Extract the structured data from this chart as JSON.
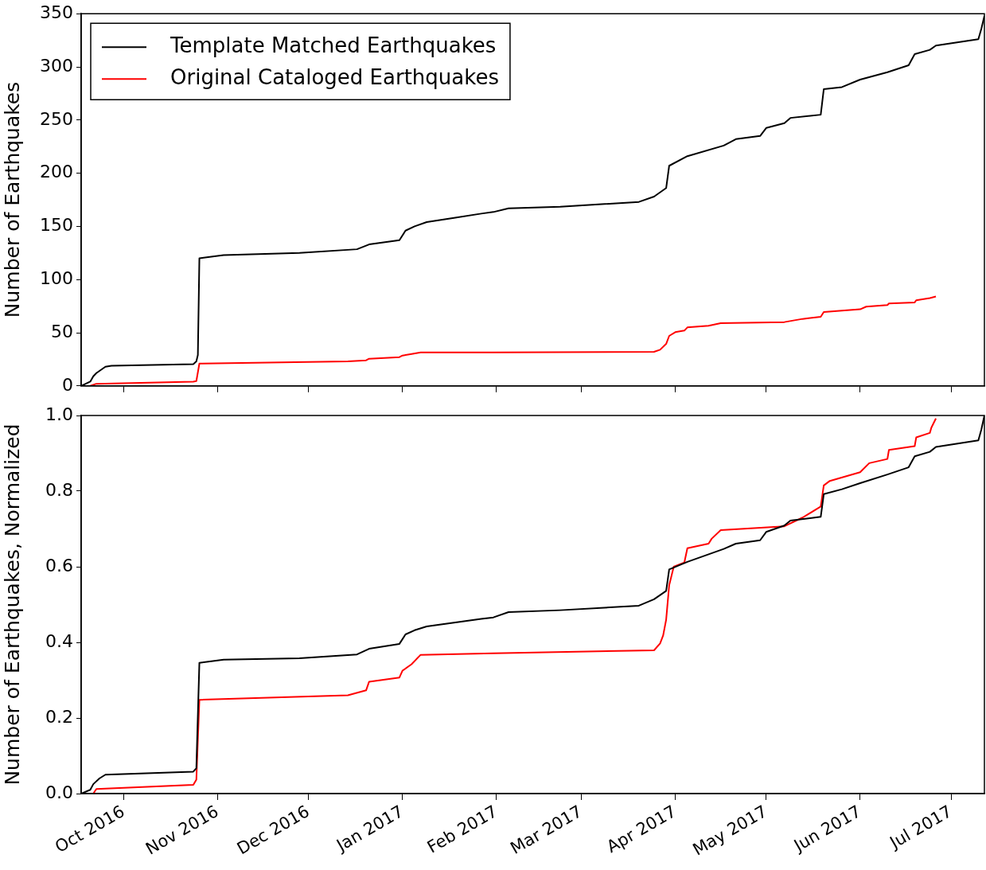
{
  "chart_data": [
    {
      "type": "line",
      "ylabel": "Number of Earthquakes",
      "xlim": [
        "2016-09-17",
        "2017-07-12"
      ],
      "xticks": [
        {
          "value": "2016-10-01",
          "label": null
        },
        {
          "value": "2016-11-01",
          "label": null
        },
        {
          "value": "2016-12-01",
          "label": null
        },
        {
          "value": "2017-01-01",
          "label": null
        },
        {
          "value": "2017-02-01",
          "label": null
        },
        {
          "value": "2017-03-01",
          "label": null
        },
        {
          "value": "2017-04-01",
          "label": null
        },
        {
          "value": "2017-05-01",
          "label": null
        },
        {
          "value": "2017-06-01",
          "label": null
        },
        {
          "value": "2017-07-01",
          "label": null
        }
      ],
      "ylim": [
        0,
        350
      ],
      "yticks": [
        0,
        50,
        100,
        150,
        200,
        250,
        300,
        350
      ],
      "tick_labels": "y",
      "grid": false,
      "legend": "top left",
      "series": [
        {
          "name": "Template Matched Earthquakes",
          "color": "#000000",
          "x": [
            "2016-09-17",
            "2016-09-20",
            "2016-09-21",
            "2016-09-22",
            "2016-09-25",
            "2016-09-27",
            "2016-10-24",
            "2016-10-25",
            "2016-10-25T12:00",
            "2016-10-26",
            "2016-11-03",
            "2016-11-28",
            "2016-12-17",
            "2016-12-21",
            "2016-12-31",
            "2017-01-02",
            "2017-01-05",
            "2017-01-09",
            "2017-01-18",
            "2017-01-27",
            "2017-01-31",
            "2017-02-05",
            "2017-02-22",
            "2017-03-20",
            "2017-03-25",
            "2017-03-29",
            "2017-03-30",
            "2017-04-05",
            "2017-04-17",
            "2017-04-21",
            "2017-04-29",
            "2017-05-01",
            "2017-05-07",
            "2017-05-09",
            "2017-05-19",
            "2017-05-20",
            "2017-05-26",
            "2017-06-01",
            "2017-06-10",
            "2017-06-17",
            "2017-06-19",
            "2017-06-24",
            "2017-06-26",
            "2017-07-10",
            "2017-07-11",
            "2017-07-12"
          ],
          "values": [
            0,
            4,
            9,
            12,
            18,
            19,
            20.5,
            23,
            29,
            120,
            123,
            125,
            128.5,
            133,
            137,
            146,
            150,
            154,
            158,
            162,
            163.5,
            167,
            168.5,
            173,
            178,
            186,
            207,
            216,
            226,
            232,
            235,
            242.5,
            247,
            252,
            255,
            279,
            281,
            288,
            295,
            301.5,
            312,
            316,
            320,
            326,
            336,
            348
          ]
        },
        {
          "name": "Original Cataloged Earthquakes",
          "color": "#ff0000",
          "x": [
            "2016-09-20",
            "2016-09-22",
            "2016-10-24",
            "2016-10-25",
            "2016-10-26",
            "2016-12-14",
            "2016-12-20",
            "2016-12-21",
            "2016-12-31",
            "2017-01-01",
            "2017-01-04",
            "2017-01-07",
            "2017-01-31",
            "2017-03-25",
            "2017-03-27",
            "2017-03-29",
            "2017-03-30",
            "2017-04-01",
            "2017-04-04",
            "2017-04-05",
            "2017-04-12",
            "2017-04-16",
            "2017-05-07",
            "2017-05-13",
            "2017-05-19",
            "2017-05-20",
            "2017-06-01",
            "2017-06-03",
            "2017-06-10",
            "2017-06-10T12:00",
            "2017-06-19",
            "2017-06-19T12:00",
            "2017-06-24",
            "2017-06-26"
          ],
          "values": [
            0,
            2,
            4,
            4.5,
            21,
            23,
            24,
            25.5,
            27,
            28.5,
            30,
            31.5,
            31.5,
            32,
            34,
            39.5,
            47,
            50.5,
            52,
            55,
            56.5,
            59,
            60,
            63,
            65,
            69.5,
            72,
            74.5,
            76,
            77.5,
            78.5,
            80.5,
            82.5,
            84
          ]
        }
      ]
    },
    {
      "type": "line",
      "ylabel": "Number of Earthquakes, Normalized",
      "xlim": [
        "2016-09-17",
        "2017-07-12"
      ],
      "xticks": [
        {
          "value": "2016-10-01",
          "label": "Oct 2016"
        },
        {
          "value": "2016-11-01",
          "label": "Nov 2016"
        },
        {
          "value": "2016-12-01",
          "label": "Dec 2016"
        },
        {
          "value": "2017-01-01",
          "label": "Jan 2017"
        },
        {
          "value": "2017-02-01",
          "label": "Feb 2017"
        },
        {
          "value": "2017-03-01",
          "label": "Mar 2017"
        },
        {
          "value": "2017-04-01",
          "label": "Apr 2017"
        },
        {
          "value": "2017-05-01",
          "label": "May 2017"
        },
        {
          "value": "2017-06-01",
          "label": "Jun 2017"
        },
        {
          "value": "2017-07-01",
          "label": "Jul 2017"
        }
      ],
      "ylim": [
        0,
        1
      ],
      "yticks": [
        {
          "value": 0,
          "label": "0.0"
        },
        {
          "value": 0.2,
          "label": "0.2"
        },
        {
          "value": 0.4,
          "label": "0.4"
        },
        {
          "value": 0.6,
          "label": "0.6"
        },
        {
          "value": 0.8,
          "label": "0.8"
        },
        {
          "value": 1,
          "label": "1.0"
        }
      ],
      "grid": false,
      "series": [
        {
          "color": "#000000",
          "x": [
            "2016-09-17",
            "2016-09-20",
            "2016-09-21",
            "2016-09-23",
            "2016-09-25",
            "2016-10-24",
            "2016-10-25",
            "2016-10-26",
            "2016-11-03",
            "2016-11-28",
            "2016-12-17",
            "2016-12-21",
            "2016-12-31",
            "2017-01-02",
            "2017-01-05",
            "2017-01-09",
            "2017-01-18",
            "2017-01-27",
            "2017-01-31",
            "2017-02-05",
            "2017-02-22",
            "2017-03-20",
            "2017-03-25",
            "2017-03-29",
            "2017-03-30",
            "2017-04-05",
            "2017-04-17",
            "2017-04-21",
            "2017-04-29",
            "2017-05-01",
            "2017-05-07",
            "2017-05-09",
            "2017-05-19",
            "2017-05-20",
            "2017-05-26",
            "2017-06-01",
            "2017-06-10",
            "2017-06-17",
            "2017-06-19",
            "2017-06-24",
            "2017-06-26",
            "2017-07-10",
            "2017-07-11",
            "2017-07-12"
          ],
          "values": [
            0,
            0.01,
            0.025,
            0.04,
            0.05,
            0.058,
            0.067,
            0.346,
            0.354,
            0.358,
            0.368,
            0.383,
            0.396,
            0.421,
            0.432,
            0.442,
            0.452,
            0.462,
            0.466,
            0.48,
            0.485,
            0.497,
            0.514,
            0.536,
            0.593,
            0.613,
            0.647,
            0.661,
            0.67,
            0.692,
            0.709,
            0.722,
            0.732,
            0.792,
            0.805,
            0.821,
            0.844,
            0.863,
            0.892,
            0.904,
            0.917,
            0.934,
            0.963,
            1
          ]
        },
        {
          "color": "#ff0000",
          "x": [
            "2016-09-21",
            "2016-09-22",
            "2016-10-24",
            "2016-10-25",
            "2016-10-26",
            "2016-12-14",
            "2016-12-20",
            "2016-12-21",
            "2016-12-31",
            "2017-01-01",
            "2017-01-04",
            "2017-01-07",
            "2017-01-31",
            "2017-03-25",
            "2017-03-27",
            "2017-03-28",
            "2017-03-29",
            "2017-03-30",
            "2017-03-31T12:00",
            "2017-04-04",
            "2017-04-05",
            "2017-04-12",
            "2017-04-13",
            "2017-04-16",
            "2017-05-07",
            "2017-05-13",
            "2017-05-19",
            "2017-05-20",
            "2017-05-22",
            "2017-06-01",
            "2017-06-04",
            "2017-06-10",
            "2017-06-10T12:00",
            "2017-06-19",
            "2017-06-19T12:00",
            "2017-06-24",
            "2017-06-24T12:00",
            "2017-06-26"
          ],
          "values": [
            0,
            0.012,
            0.023,
            0.037,
            0.248,
            0.26,
            0.273,
            0.296,
            0.307,
            0.325,
            0.342,
            0.367,
            0.371,
            0.379,
            0.397,
            0.418,
            0.46,
            0.551,
            0.6,
            0.611,
            0.649,
            0.661,
            0.674,
            0.697,
            0.707,
            0.73,
            0.759,
            0.815,
            0.827,
            0.85,
            0.874,
            0.885,
            0.909,
            0.919,
            0.942,
            0.954,
            0.968,
            0.992
          ]
        }
      ]
    }
  ]
}
